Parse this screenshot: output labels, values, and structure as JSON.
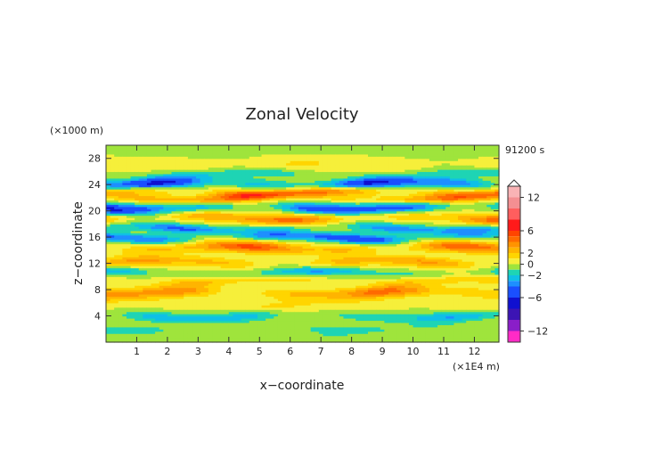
{
  "chart_data": {
    "type": "heatmap",
    "title": "Zonal Velocity",
    "xlabel": "x−coordinate",
    "ylabel": "z−coordinate",
    "x_unit": "(×1E4 m)",
    "y_unit": "(×1000 m)",
    "time_label": "91200 s",
    "xlim": [
      0,
      12.8
    ],
    "ylim": [
      0,
      30
    ],
    "x_ticks": [
      1,
      2,
      3,
      4,
      5,
      6,
      7,
      8,
      9,
      10,
      11,
      12
    ],
    "y_ticks": [
      4,
      8,
      12,
      16,
      20,
      24,
      28
    ],
    "colorbar": {
      "vmin": -14,
      "vmax": 14,
      "ticks": [
        "12",
        "6",
        "2",
        "0",
        "−2",
        "−6",
        "−12"
      ],
      "tick_values": [
        12,
        6,
        2,
        0,
        -2,
        -6,
        -12
      ],
      "levels": [
        {
          "from": 12,
          "to": 14,
          "color": "#f9b3b5"
        },
        {
          "from": 10,
          "to": 12,
          "color": "#f48f92"
        },
        {
          "from": 8,
          "to": 10,
          "color": "#ff5e5e"
        },
        {
          "from": 6,
          "to": 8,
          "color": "#ff1a1a"
        },
        {
          "from": 5,
          "to": 6,
          "color": "#ff4400"
        },
        {
          "from": 4,
          "to": 5,
          "color": "#ff6a00"
        },
        {
          "from": 3,
          "to": 4,
          "color": "#ff9300"
        },
        {
          "from": 2,
          "to": 3,
          "color": "#ffb400"
        },
        {
          "from": 1,
          "to": 2,
          "color": "#ffd500"
        },
        {
          "from": 0,
          "to": 1,
          "color": "#f6ef3a"
        },
        {
          "from": -1,
          "to": 0,
          "color": "#9fe43c"
        },
        {
          "from": -2,
          "to": -1,
          "color": "#1ed4b4"
        },
        {
          "from": -3,
          "to": -2,
          "color": "#0fc0e6"
        },
        {
          "from": -4,
          "to": -3,
          "color": "#1e8fff"
        },
        {
          "from": -6,
          "to": -4,
          "color": "#1a4fff"
        },
        {
          "from": -8,
          "to": -6,
          "color": "#1010d0"
        },
        {
          "from": -10,
          "to": -8,
          "color": "#3c14b4"
        },
        {
          "from": -12,
          "to": -10,
          "color": "#8a1ec8"
        },
        {
          "from": -14,
          "to": -12,
          "color": "#ff2bc6"
        }
      ]
    },
    "bands": [
      {
        "z": 29.2,
        "w": 0.8,
        "amp": -0.6
      },
      {
        "z": 27.0,
        "w": 1.0,
        "amp": 0.9
      },
      {
        "z": 25.6,
        "w": 0.7,
        "amp": -1.6
      },
      {
        "z": 24.2,
        "w": 0.8,
        "amp": -5.0
      },
      {
        "z": 22.9,
        "w": 0.7,
        "amp": 4.2
      },
      {
        "z": 22.0,
        "w": 0.7,
        "amp": 3.0
      },
      {
        "z": 20.6,
        "w": 0.8,
        "amp": -4.8
      },
      {
        "z": 19.0,
        "w": 0.8,
        "amp": 3.6
      },
      {
        "z": 17.4,
        "w": 0.7,
        "amp": -3.2
      },
      {
        "z": 16.0,
        "w": 0.7,
        "amp": -4.5
      },
      {
        "z": 14.4,
        "w": 0.9,
        "amp": 4.0
      },
      {
        "z": 12.2,
        "w": 0.8,
        "amp": 2.6
      },
      {
        "z": 10.6,
        "w": 0.7,
        "amp": -2.4
      },
      {
        "z": 9.4,
        "w": 0.7,
        "amp": 1.7
      },
      {
        "z": 7.6,
        "w": 0.9,
        "amp": 3.4
      },
      {
        "z": 5.8,
        "w": 0.9,
        "amp": 0.9
      },
      {
        "z": 4.0,
        "w": 0.8,
        "amp": -2.3
      },
      {
        "z": 2.2,
        "w": 0.7,
        "amp": -1.2
      },
      {
        "z": 1.2,
        "w": 0.6,
        "amp": -0.8
      }
    ]
  }
}
